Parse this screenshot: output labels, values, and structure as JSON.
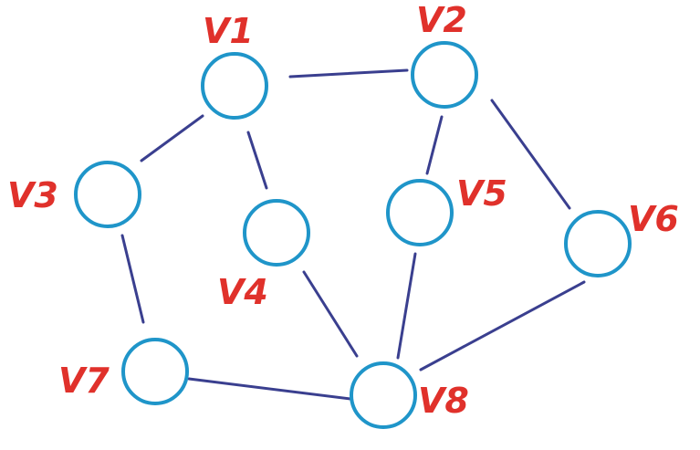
{
  "diagram": {
    "colors": {
      "node_stroke": "#1f95c9",
      "edge": "#3a3f8f",
      "label": "#e0312b",
      "background": "#ffffff"
    },
    "nodes": [
      {
        "id": "v1",
        "label": "V1"
      },
      {
        "id": "v2",
        "label": "V2"
      },
      {
        "id": "v3",
        "label": "V3"
      },
      {
        "id": "v4",
        "label": "V4"
      },
      {
        "id": "v5",
        "label": "V5"
      },
      {
        "id": "v6",
        "label": "V6"
      },
      {
        "id": "v7",
        "label": "V7"
      },
      {
        "id": "v8",
        "label": "V8"
      }
    ],
    "edges": [
      {
        "from": "v1",
        "to": "v2"
      },
      {
        "from": "v1",
        "to": "v3"
      },
      {
        "from": "v1",
        "to": "v4"
      },
      {
        "from": "v2",
        "to": "v5"
      },
      {
        "from": "v2",
        "to": "v6"
      },
      {
        "from": "v3",
        "to": "v7"
      },
      {
        "from": "v4",
        "to": "v8"
      },
      {
        "from": "v5",
        "to": "v8"
      },
      {
        "from": "v6",
        "to": "v8"
      },
      {
        "from": "v7",
        "to": "v8"
      }
    ]
  }
}
